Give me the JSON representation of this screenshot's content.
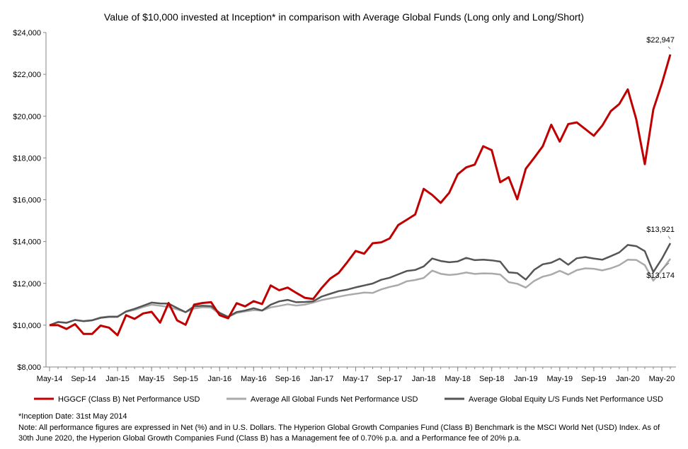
{
  "chart_data": {
    "type": "line",
    "title": "Value of $10,000 invested at Inception* in comparison with Average Global Funds (Long only and Long/Short)",
    "ylim": [
      8000,
      24000
    ],
    "y_ticks": [
      "$8,000",
      "$10,000",
      "$12,000",
      "$14,000",
      "$16,000",
      "$18,000",
      "$20,000",
      "$22,000",
      "$24,000"
    ],
    "y_tick_values": [
      8000,
      10000,
      12000,
      14000,
      16000,
      18000,
      20000,
      22000,
      24000
    ],
    "x_tick_labels": [
      "May-14",
      "Sep-14",
      "Jan-15",
      "May-15",
      "Sep-15",
      "Jan-16",
      "May-16",
      "Sep-16",
      "Jan-17",
      "May-17",
      "Sep-17",
      "Jan-18",
      "May-18",
      "Sep-18",
      "Jan-19",
      "May-19",
      "Sep-19",
      "Jan-20",
      "May-20"
    ],
    "x": [
      "May-14",
      "Jun-14",
      "Jul-14",
      "Aug-14",
      "Sep-14",
      "Oct-14",
      "Nov-14",
      "Dec-14",
      "Jan-15",
      "Feb-15",
      "Mar-15",
      "Apr-15",
      "May-15",
      "Jun-15",
      "Jul-15",
      "Aug-15",
      "Sep-15",
      "Oct-15",
      "Nov-15",
      "Dec-15",
      "Jan-16",
      "Feb-16",
      "Mar-16",
      "Apr-16",
      "May-16",
      "Jun-16",
      "Jul-16",
      "Aug-16",
      "Sep-16",
      "Oct-16",
      "Nov-16",
      "Dec-16",
      "Jan-17",
      "Feb-17",
      "Mar-17",
      "Apr-17",
      "May-17",
      "Jun-17",
      "Jul-17",
      "Aug-17",
      "Sep-17",
      "Oct-17",
      "Nov-17",
      "Dec-17",
      "Jan-18",
      "Feb-18",
      "Mar-18",
      "Apr-18",
      "May-18",
      "Jun-18",
      "Jul-18",
      "Aug-18",
      "Sep-18",
      "Oct-18",
      "Nov-18",
      "Dec-18",
      "Jan-19",
      "Feb-19",
      "Mar-19",
      "Apr-19",
      "May-19",
      "Jun-19",
      "Jul-19",
      "Aug-19",
      "Sep-19",
      "Oct-19",
      "Nov-19",
      "Dec-19",
      "Jan-20",
      "Feb-20",
      "Mar-20",
      "Apr-20",
      "May-20",
      "Jun-20"
    ],
    "series": [
      {
        "name": "HGGCF (Class B) Net Performance USD",
        "color": "#c00000",
        "values": [
          10000,
          10000,
          9820,
          10050,
          9580,
          9580,
          9980,
          9880,
          9520,
          10480,
          10300,
          10560,
          10640,
          10120,
          11060,
          10230,
          10020,
          10980,
          11060,
          11100,
          10480,
          10330,
          11050,
          10900,
          11150,
          11010,
          11900,
          11670,
          11800,
          11550,
          11310,
          11250,
          11780,
          12230,
          12500,
          13010,
          13550,
          13420,
          13920,
          13960,
          14150,
          14790,
          15040,
          15300,
          16520,
          16230,
          15850,
          16330,
          17220,
          17550,
          17680,
          18560,
          18370,
          16840,
          17080,
          16020,
          17480,
          18010,
          18560,
          19590,
          18780,
          19620,
          19700,
          19380,
          19060,
          19550,
          20240,
          20580,
          21280,
          19850,
          17700,
          20320,
          21550,
          22947
        ],
        "end_label": "$22,947"
      },
      {
        "name": "Average All Global Funds Net Performance USD",
        "color": "#aaaaaa",
        "values": [
          10000,
          10150,
          10120,
          10250,
          10200,
          10240,
          10370,
          10420,
          10420,
          10640,
          10730,
          10870,
          10980,
          10930,
          10870,
          10760,
          10620,
          10800,
          10860,
          10840,
          10530,
          10400,
          10580,
          10660,
          10720,
          10700,
          10850,
          10920,
          11000,
          10940,
          10980,
          11080,
          11200,
          11280,
          11360,
          11440,
          11500,
          11560,
          11540,
          11710,
          11830,
          11920,
          12100,
          12160,
          12260,
          12610,
          12460,
          12400,
          12440,
          12520,
          12450,
          12480,
          12470,
          12420,
          12060,
          11980,
          11800,
          12120,
          12320,
          12420,
          12600,
          12420,
          12630,
          12720,
          12700,
          12620,
          12720,
          12870,
          13130,
          13120,
          12870,
          12130,
          12630,
          13174
        ],
        "end_label": "$13,174"
      },
      {
        "name": "Average Global Equity L/S Funds Net Performance USD",
        "color": "#555555",
        "values": [
          10000,
          10150,
          10110,
          10250,
          10190,
          10230,
          10350,
          10400,
          10400,
          10660,
          10780,
          10930,
          11080,
          11040,
          11030,
          10820,
          10620,
          10900,
          10930,
          10910,
          10590,
          10400,
          10630,
          10700,
          10810,
          10700,
          10980,
          11140,
          11210,
          11100,
          11110,
          11140,
          11370,
          11500,
          11630,
          11700,
          11810,
          11900,
          11990,
          12170,
          12270,
          12430,
          12590,
          12640,
          12810,
          13190,
          13070,
          13010,
          13050,
          13220,
          13110,
          13130,
          13100,
          13040,
          12530,
          12490,
          12180,
          12650,
          12910,
          12990,
          13180,
          12890,
          13200,
          13260,
          13190,
          13130,
          13300,
          13480,
          13840,
          13780,
          13540,
          12540,
          13170,
          13921
        ],
        "end_label": "$13,921"
      }
    ],
    "grid": false,
    "legend_position": "bottom"
  },
  "notes": {
    "inception": "*Inception Date: 31st May 2014",
    "disclaimer": "Note: All performance figures are expressed in Net (%) and in U.S. Dollars. The Hyperion Global Growth Companies Fund (Class B) Benchmark is the MSCI World Net (USD) Index. As of 30th June 2020, the Hyperion Global Growth Companies Fund (Class B) has a Management fee of 0.70% p.a. and a Performance fee of 20% p.a."
  }
}
